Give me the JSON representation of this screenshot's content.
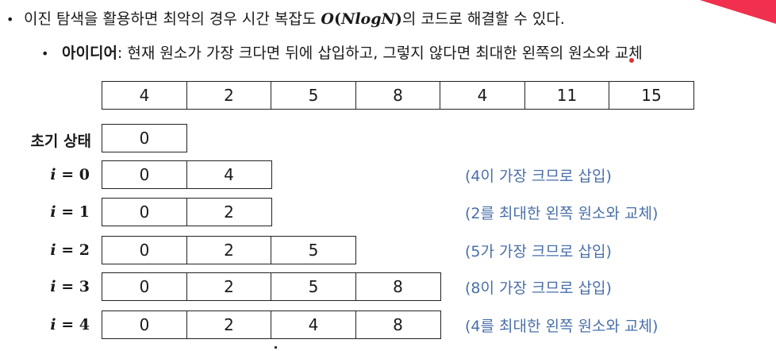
{
  "bullet1": {
    "dot": "•",
    "text_before": "이진 탐색을 활용하면 최악의 경우 시간 복잡도 ",
    "formula_o": "O",
    "formula_open": "(",
    "formula_body": "NlogN",
    "formula_close": ")",
    "text_after": "의 코드로 해결할 수 있다."
  },
  "bullet2": {
    "dot": "•",
    "label": "아이디어",
    "text": ": 현재 원소가 가장 크다면 뒤에 삽입하고, 그렇지 않다면 최대한 왼쪽의 원소와 교체"
  },
  "input_array": [
    "4",
    "2",
    "5",
    "8",
    "4",
    "11",
    "15"
  ],
  "initial": {
    "label": "초기 상태",
    "cells": [
      "0"
    ]
  },
  "steps": [
    {
      "var": "i",
      "eq": " = ",
      "num": "0",
      "cells": [
        "0",
        "4"
      ],
      "note": "(4이 가장 크므로 삽입)"
    },
    {
      "var": "i",
      "eq": " = ",
      "num": "1",
      "cells": [
        "0",
        "2"
      ],
      "note": "(2를 최대한 왼쪽 원소와 교체)"
    },
    {
      "var": "i",
      "eq": " = ",
      "num": "2",
      "cells": [
        "0",
        "2",
        "5"
      ],
      "note": "(5가 가장 크므로 삽입)"
    },
    {
      "var": "i",
      "eq": " = ",
      "num": "3",
      "cells": [
        "0",
        "2",
        "5",
        "8"
      ],
      "note": "(8이 가장 크므로 삽입)"
    },
    {
      "var": "i",
      "eq": " = ",
      "num": "4",
      "cells": [
        "0",
        "2",
        "4",
        "8"
      ],
      "note": "(4를 최대한 왼쪽 원소와 교체)"
    }
  ],
  "colors": {
    "note": "#4a6fa8",
    "accent": "#f0304e",
    "cell_border": "#222222"
  }
}
